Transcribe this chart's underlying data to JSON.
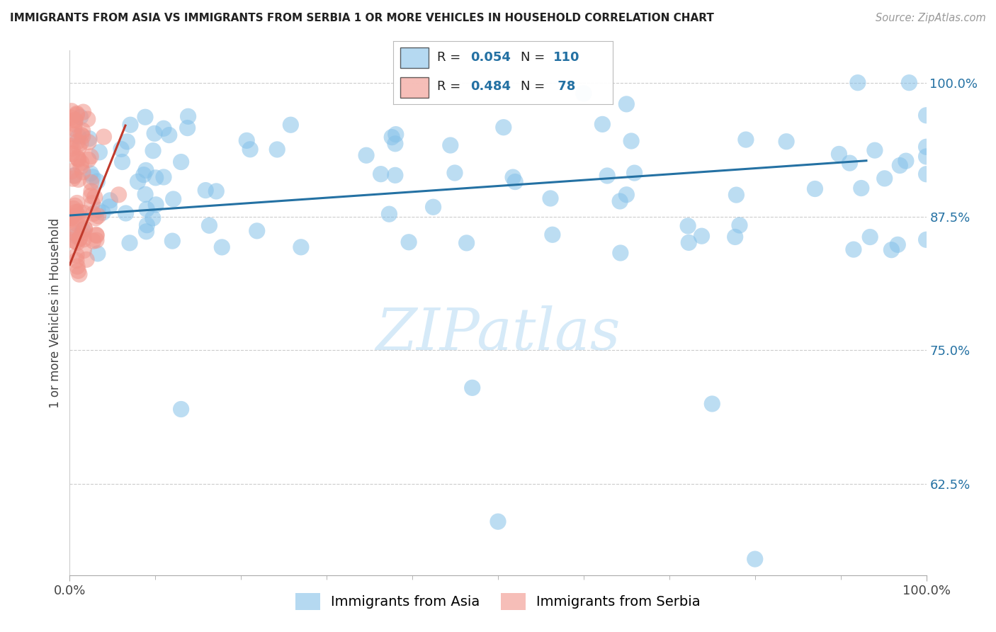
{
  "title": "IMMIGRANTS FROM ASIA VS IMMIGRANTS FROM SERBIA 1 OR MORE VEHICLES IN HOUSEHOLD CORRELATION CHART",
  "source": "Source: ZipAtlas.com",
  "ylabel": "1 or more Vehicles in Household",
  "legend_asia": {
    "R": 0.054,
    "N": 110,
    "label": "Immigrants from Asia"
  },
  "legend_serbia": {
    "R": 0.484,
    "N": 78,
    "label": "Immigrants from Serbia"
  },
  "xlim": [
    0,
    1
  ],
  "ylim": [
    0.54,
    1.03
  ],
  "yticks": [
    0.625,
    0.75,
    0.875,
    1.0
  ],
  "ytick_labels": [
    "62.5%",
    "75.0%",
    "87.5%",
    "100.0%"
  ],
  "xtick_labels": [
    "0.0%",
    "100.0%"
  ],
  "color_asia": "#85C1E9",
  "color_serbia": "#F1948A",
  "trendline_color_asia": "#2471A3",
  "trendline_color_serbia": "#C0392B",
  "watermark_color": "#D6EAF8",
  "background_color": "#FFFFFF",
  "title_fontsize": 11,
  "tick_fontsize": 13,
  "legend_fontsize": 14
}
